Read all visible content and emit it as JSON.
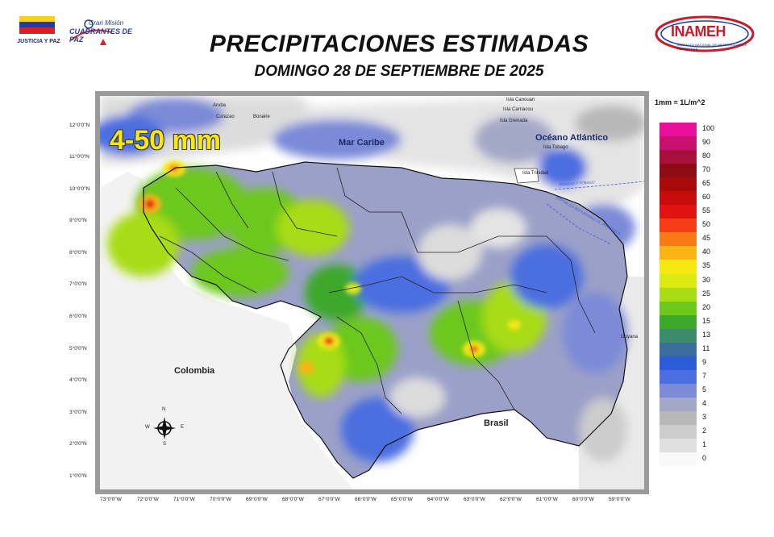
{
  "header": {
    "title": "PRECIPITACIONES ESTIMADAS",
    "subtitle": "DOMINGO 28 DE SEPTIEMBRE DE 2025"
  },
  "logos": {
    "left_caption": "JUSTICIA Y PAZ",
    "mid_line1": "Gran Misión",
    "mid_line2": "CUADRANTES DE PAZ",
    "right_name": "INAMEH",
    "right_sub": "INSTITUTO NACIONAL DE METEOROLOGÍA E HIDROLOGÍA"
  },
  "map": {
    "range_label": "4-50 mm",
    "labels": {
      "sea": "Mar Caribe",
      "ocean": "Océano Atlántico",
      "colombia": "Colombia",
      "brasil": "Brasil",
      "guyana": "Guyana",
      "aruba": "Aruba",
      "curazao": "Curazao",
      "bonaire": "Bonaire",
      "trinidad": "Isla Trinidad",
      "tobago": "Isla Tobago",
      "grenada": "Isla Grenada",
      "carriacou": "Isla Carriacou",
      "canouan": "Isla Canouan",
      "treaty1": "TRINIDAD Y TOBAGO",
      "treaty2": "REPÚBLICA BOLIVARIANA DE VENEZUELA"
    },
    "lat_ticks": [
      "12°0'0\"N",
      "11°0'0\"N",
      "10°0'0\"N",
      "9°0'0\"N",
      "8°0'0\"N",
      "7°0'0\"N",
      "6°0'0\"N",
      "5°0'0\"N",
      "4°0'0\"N",
      "3°0'0\"N",
      "2°0'0\"N",
      "1°0'0\"N"
    ],
    "lon_ticks": [
      "73°0'0\"W",
      "72°0'0\"W",
      "71°0'0\"W",
      "70°0'0\"W",
      "69°0'0\"W",
      "68°0'0\"W",
      "67°0'0\"W",
      "66°0'0\"W",
      "65°0'0\"W",
      "64°0'0\"W",
      "63°0'0\"W",
      "62°0'0\"W",
      "61°0'0\"W",
      "60°0'0\"W",
      "59°0'0\"W"
    ],
    "compass": {
      "n": "N",
      "s": "S",
      "e": "E",
      "w": "W"
    }
  },
  "legend": {
    "unit": "1mm = 1L/m^2",
    "items": [
      {
        "value": "100",
        "color": "#e8109a"
      },
      {
        "value": "90",
        "color": "#c8106e"
      },
      {
        "value": "80",
        "color": "#a8103c"
      },
      {
        "value": "70",
        "color": "#8c0c14"
      },
      {
        "value": "65",
        "color": "#a80a0a"
      },
      {
        "value": "60",
        "color": "#c80c0c"
      },
      {
        "value": "55",
        "color": "#e21212"
      },
      {
        "value": "50",
        "color": "#f53c14"
      },
      {
        "value": "45",
        "color": "#f87a14"
      },
      {
        "value": "40",
        "color": "#fab414"
      },
      {
        "value": "35",
        "color": "#f8e812"
      },
      {
        "value": "30",
        "color": "#dcea14"
      },
      {
        "value": "25",
        "color": "#a8dc14"
      },
      {
        "value": "20",
        "color": "#6cc81a"
      },
      {
        "value": "15",
        "color": "#3ca82c"
      },
      {
        "value": "13",
        "color": "#3a8c6c"
      },
      {
        "value": "11",
        "color": "#3a6c9c"
      },
      {
        "value": "9",
        "color": "#2c5cd8"
      },
      {
        "value": "7",
        "color": "#4c6ee0"
      },
      {
        "value": "5",
        "color": "#7c8ad8"
      },
      {
        "value": "4",
        "color": "#a4a8c8"
      },
      {
        "value": "3",
        "color": "#b8b8b8"
      },
      {
        "value": "2",
        "color": "#cccccc"
      },
      {
        "value": "1",
        "color": "#e0e0e0"
      },
      {
        "value": "0",
        "color": "#f8f8f8"
      }
    ]
  }
}
